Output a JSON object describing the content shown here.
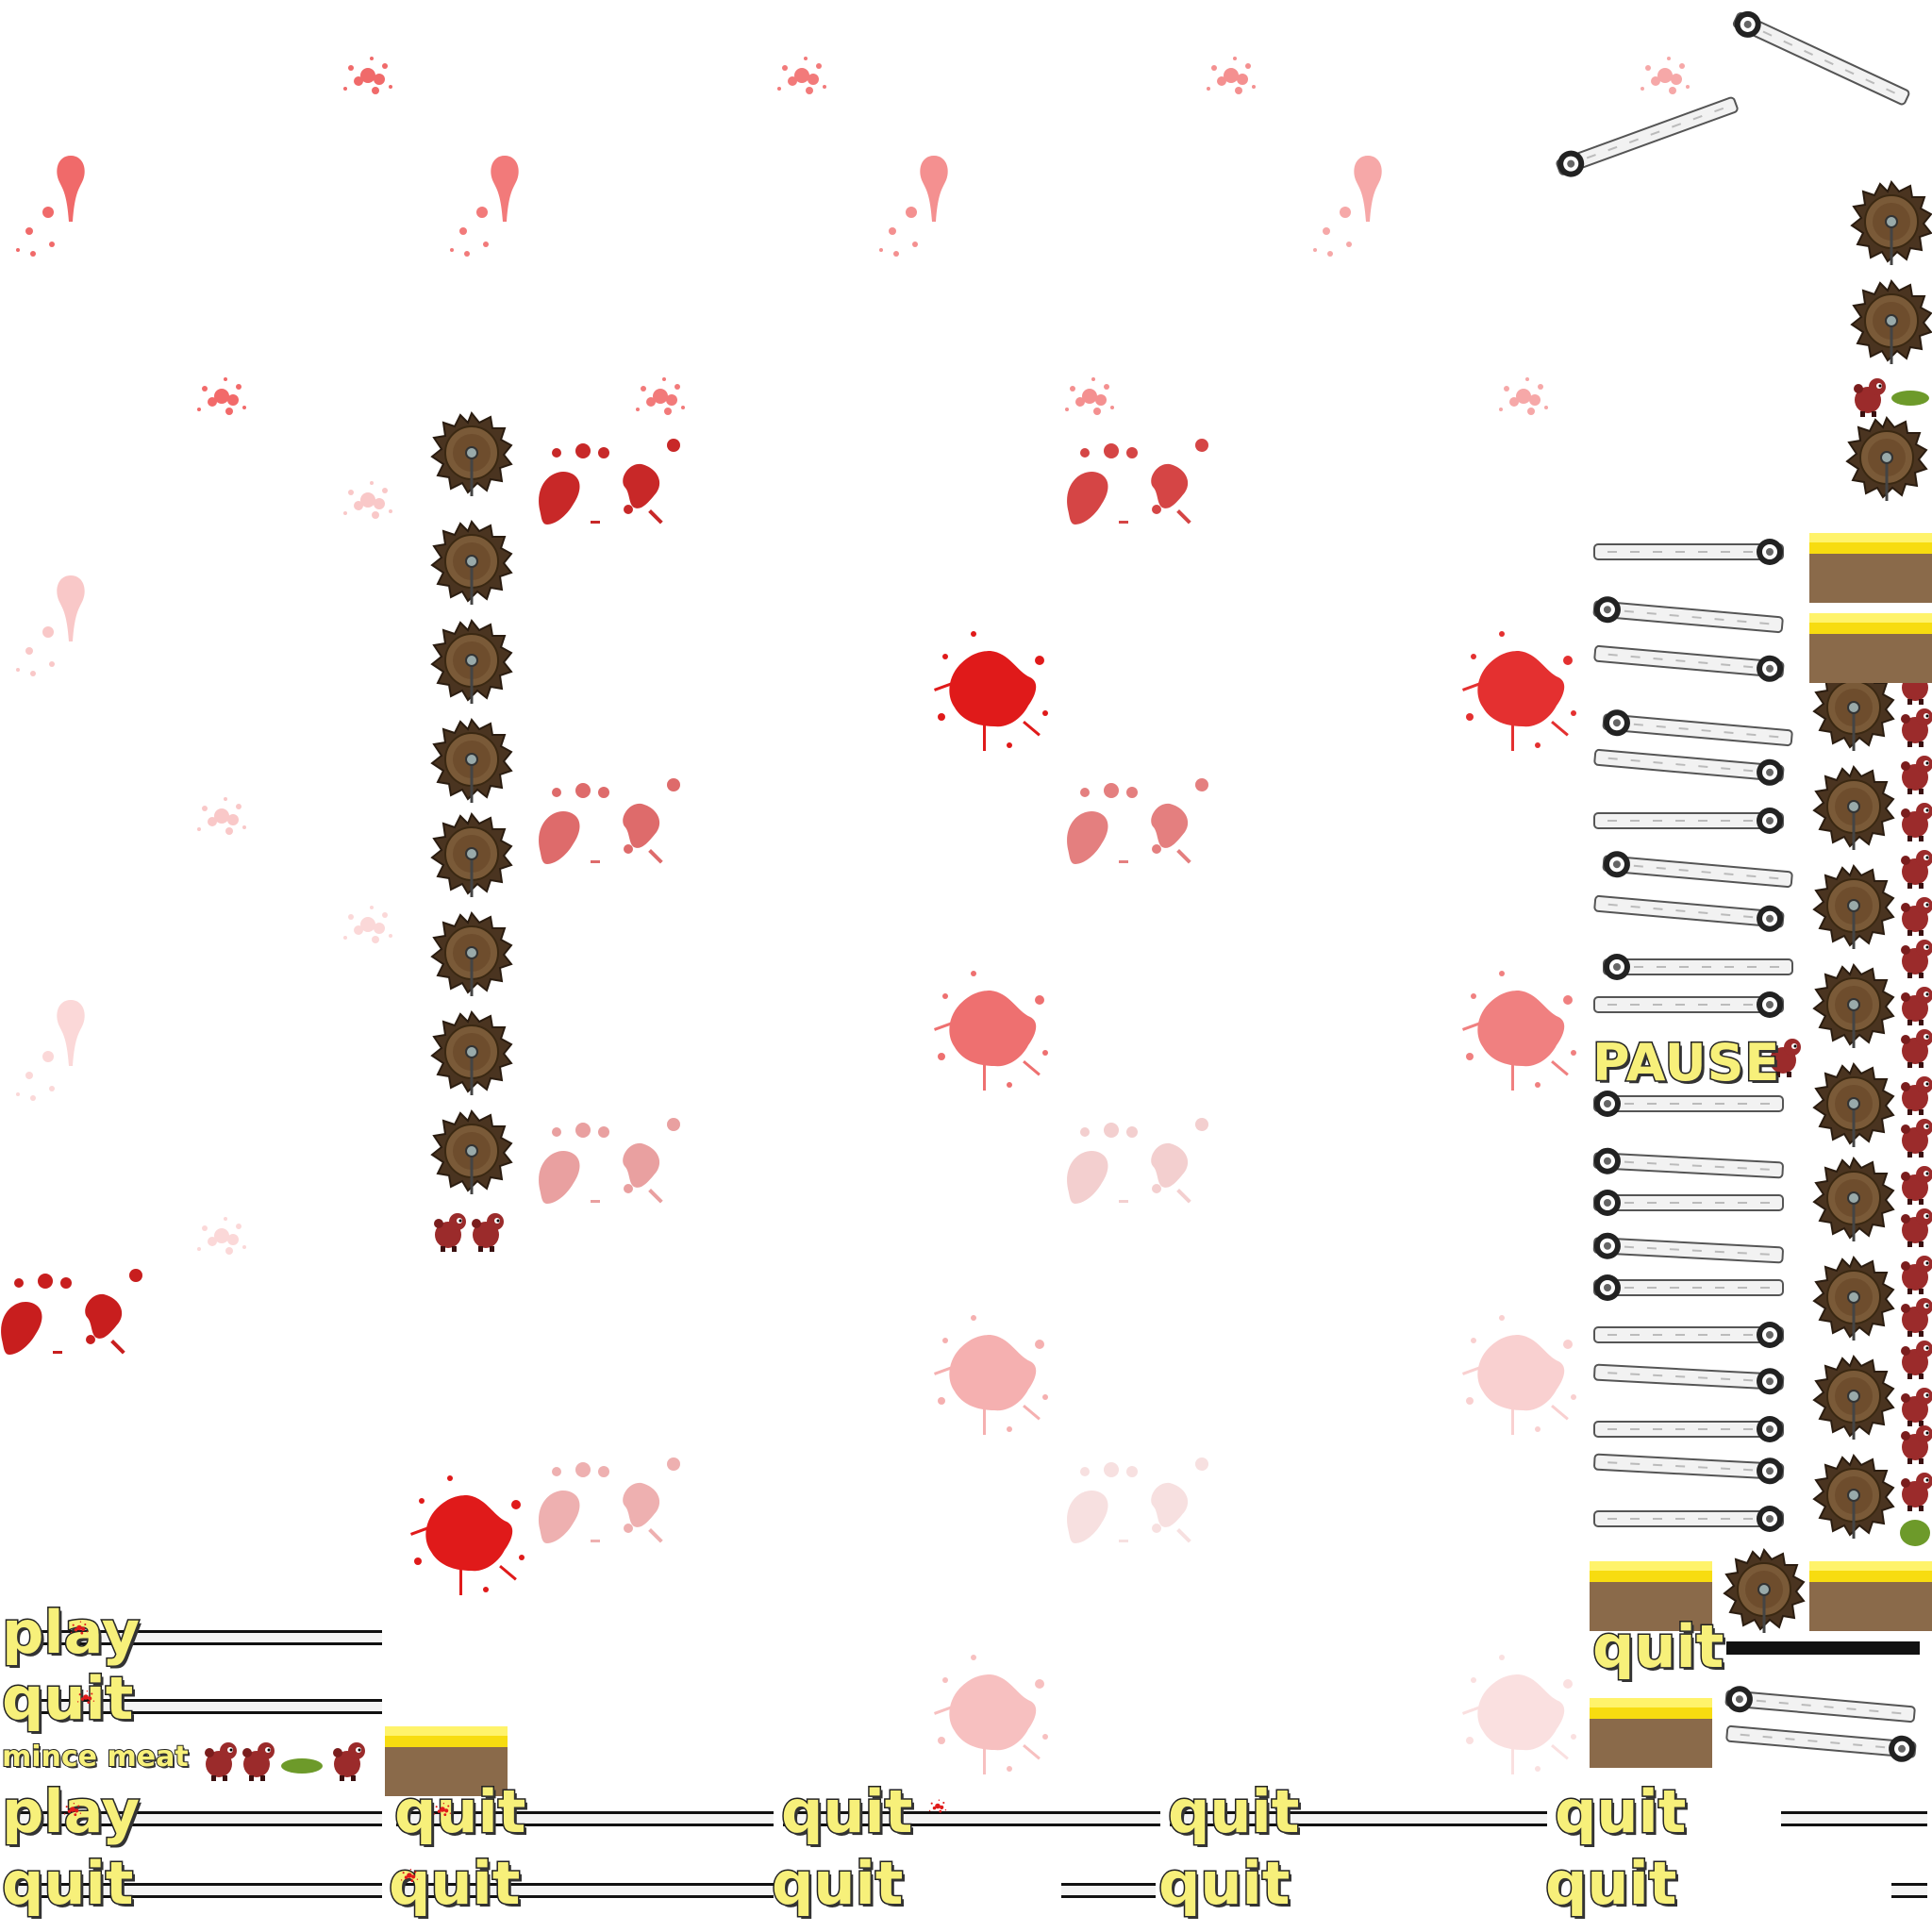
{
  "sheet": {
    "labels": {
      "play_1": "play",
      "quit_1": "quit",
      "title": "mince meat",
      "play_2": "play",
      "quit_row_a": [
        "quit",
        "quit",
        "quit",
        "quit"
      ],
      "quit_row_b": [
        "quit",
        "quit",
        "quit",
        "quit",
        "quit"
      ],
      "pause": "PAUSE",
      "quit_right": "quit"
    },
    "colors": {
      "blood_bright": "#e01a1a",
      "blood_dark": "#c42a2a",
      "blood_light": "#f3a6a6",
      "label_fill": "#f7f07a",
      "label_outline": "#222222",
      "saw_brown": "#6b4a2a",
      "mat_yellow": "#f7dc10",
      "mat_wood": "#8a6a4a",
      "creature_red": "#9b2b2b",
      "slime_green": "#6d9a2a"
    },
    "icons": [
      "blood-splatter-icon",
      "saw-blade-icon",
      "wooden-stick-icon",
      "creature-icon",
      "gold-mat-icon"
    ]
  }
}
